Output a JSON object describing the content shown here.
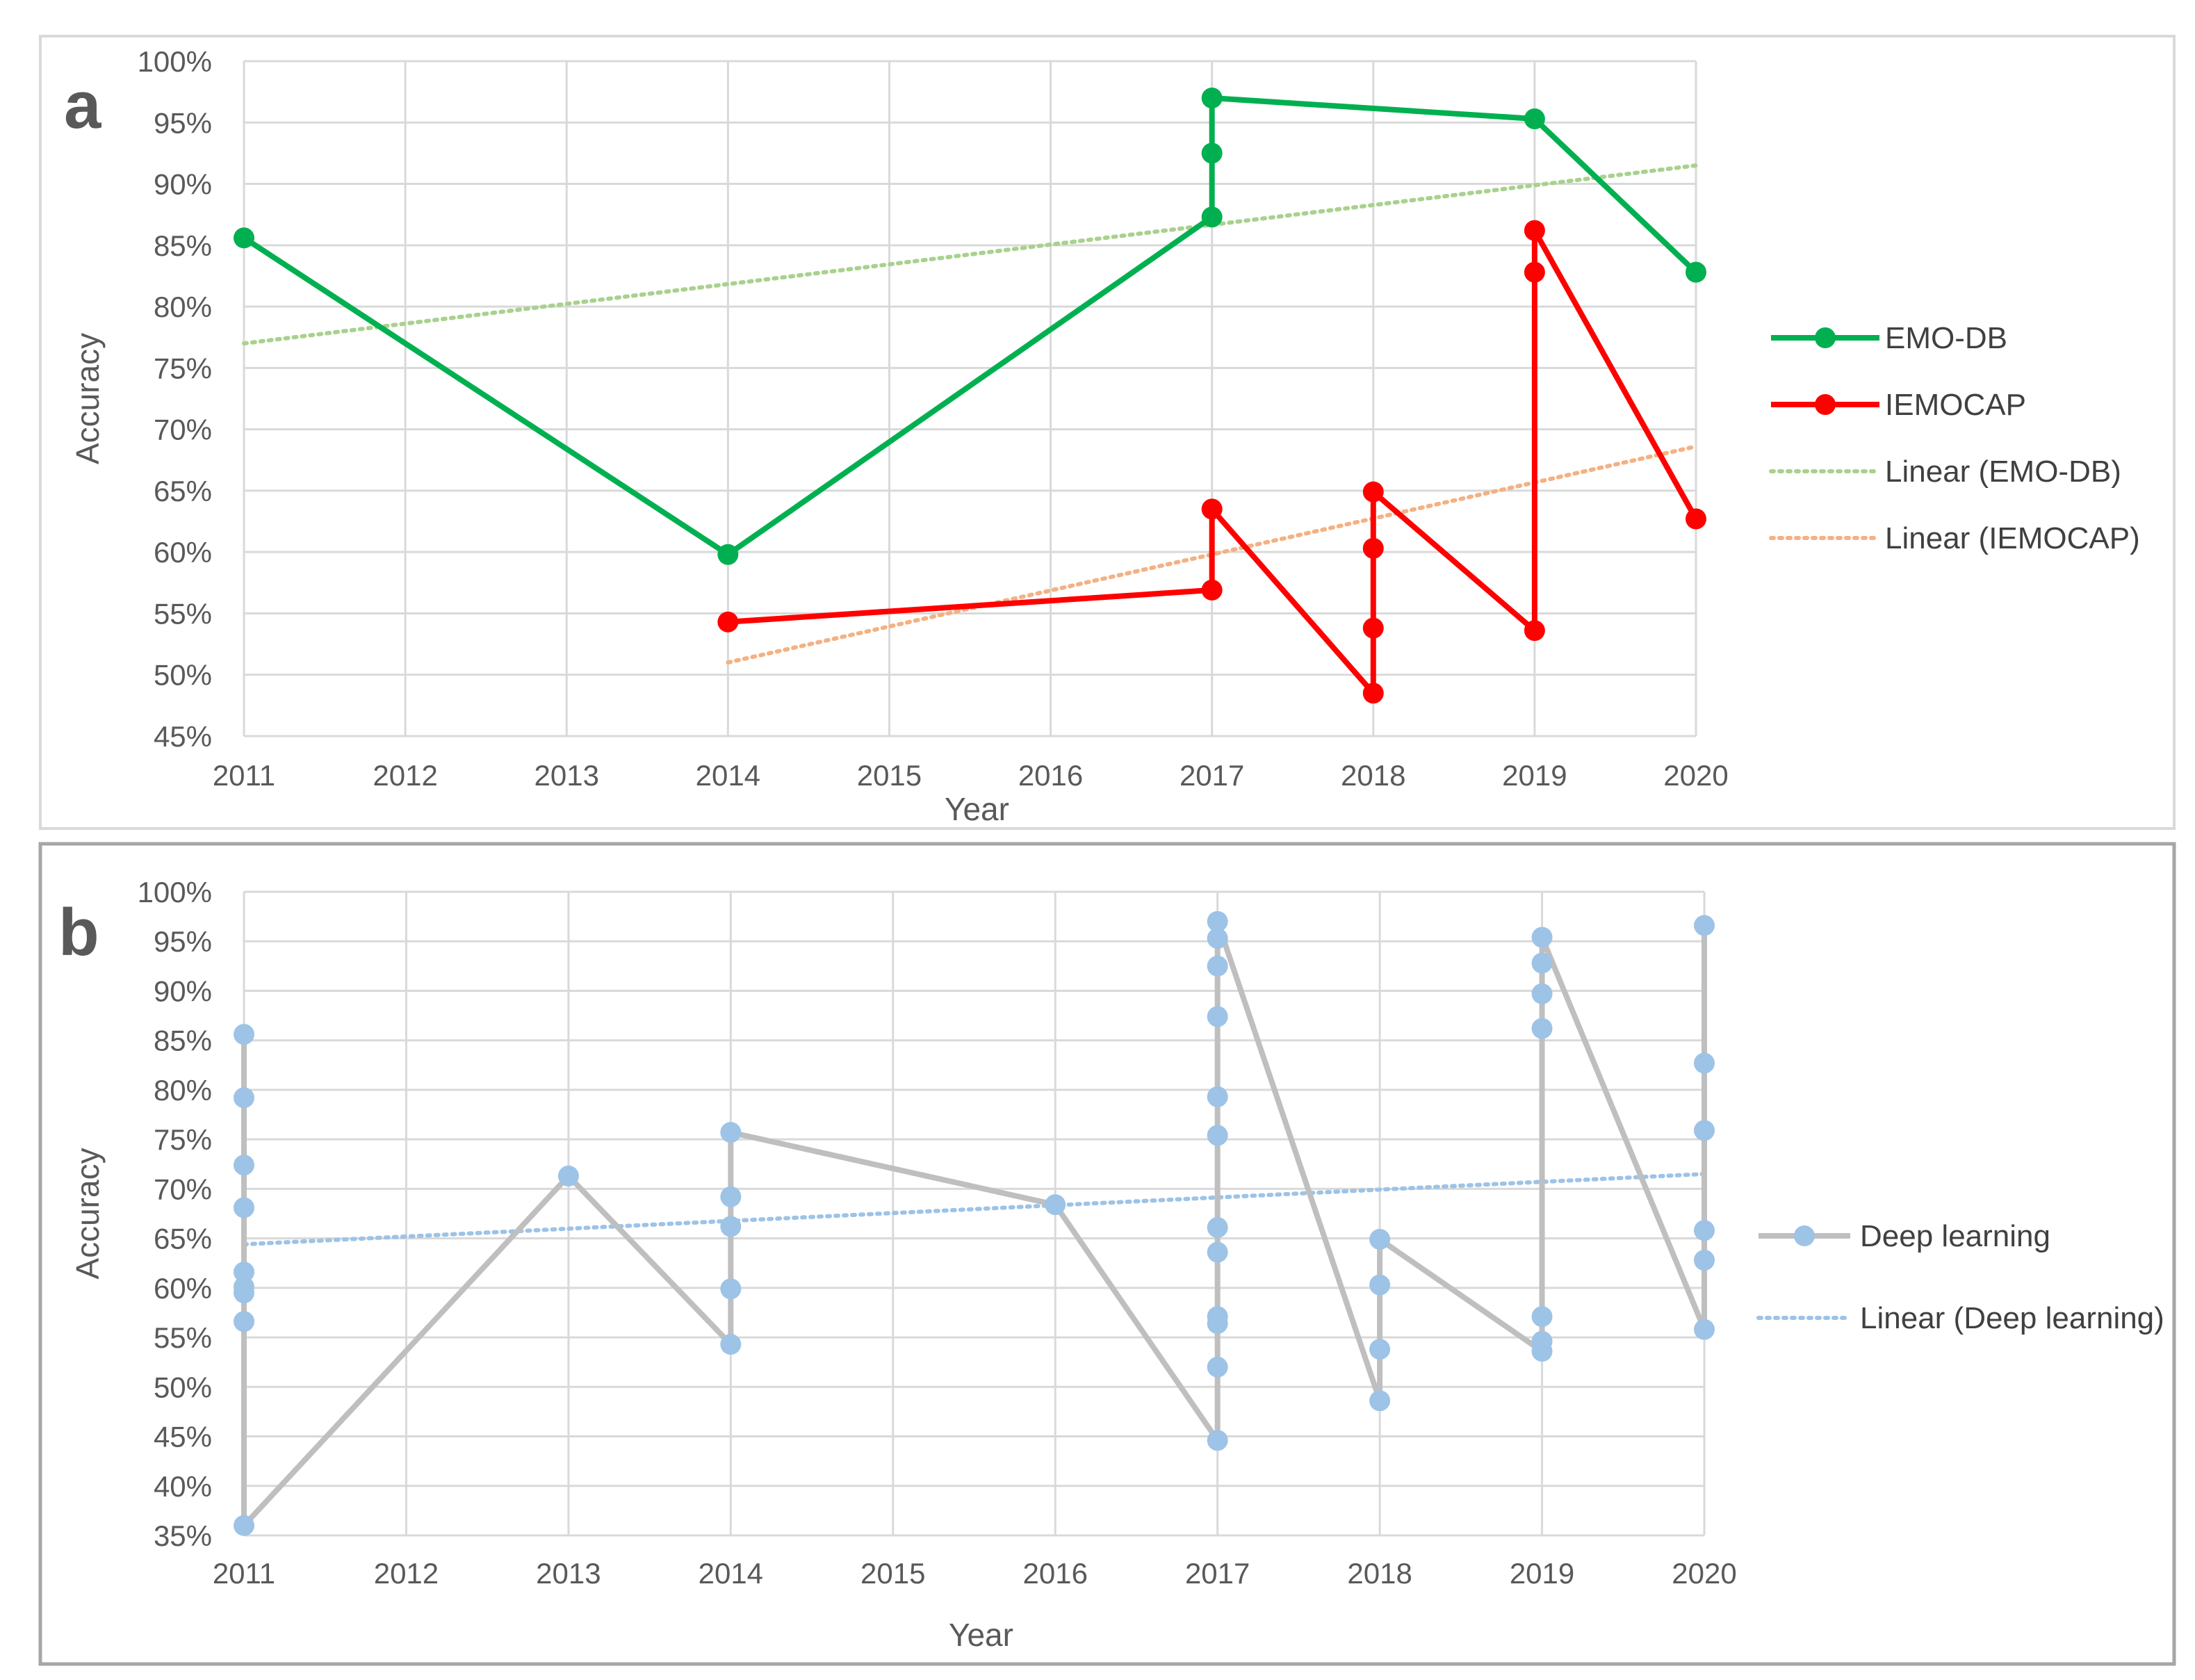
{
  "chart_data": [
    {
      "type": "line",
      "panel_label": "a",
      "xlabel": "Year",
      "ylabel": "Accuracy",
      "x_ticks": [
        "2011",
        "2012",
        "2013",
        "2014",
        "2015",
        "2016",
        "2017",
        "2018",
        "2019",
        "2020"
      ],
      "y_ticks": [
        "45%",
        "50%",
        "55%",
        "60%",
        "65%",
        "70%",
        "75%",
        "80%",
        "85%",
        "90%",
        "95%",
        "100%"
      ],
      "ylim": [
        45,
        100
      ],
      "xlim": [
        2011,
        2020
      ],
      "grid": true,
      "legend_position": "right",
      "series": [
        {
          "name": "EMO-DB",
          "color": "#00B050",
          "marker": "circle",
          "points": [
            [
              2011,
              85.6
            ],
            [
              2014,
              59.8
            ],
            [
              2017,
              87.3
            ],
            [
              2017,
              92.5
            ],
            [
              2017,
              97.0
            ],
            [
              2019,
              95.3
            ],
            [
              2020,
              82.8
            ]
          ]
        },
        {
          "name": "IEMOCAP",
          "color": "#FF0000",
          "marker": "circle",
          "points": [
            [
              2014,
              54.3
            ],
            [
              2017,
              56.9
            ],
            [
              2017,
              63.5
            ],
            [
              2018,
              48.5
            ],
            [
              2018,
              53.8
            ],
            [
              2018,
              60.3
            ],
            [
              2018,
              64.9
            ],
            [
              2019,
              53.6
            ],
            [
              2019,
              82.8
            ],
            [
              2019,
              86.2
            ],
            [
              2020,
              62.7
            ]
          ]
        },
        {
          "name": "Linear (EMO-DB)",
          "color": "#A9D18E",
          "style": "dotted",
          "trendline": true,
          "points": [
            [
              2011,
              77.0
            ],
            [
              2020,
              91.5
            ]
          ]
        },
        {
          "name": "Linear (IEMOCAP)",
          "color": "#F4B183",
          "style": "dotted",
          "trendline": true,
          "points": [
            [
              2014,
              51.0
            ],
            [
              2020,
              68.6
            ]
          ]
        }
      ]
    },
    {
      "type": "line",
      "panel_label": "b",
      "xlabel": "Year",
      "ylabel": "Accuracy",
      "x_ticks": [
        "2011",
        "2012",
        "2013",
        "2014",
        "2015",
        "2016",
        "2017",
        "2018",
        "2019",
        "2020"
      ],
      "y_ticks": [
        "35%",
        "40%",
        "45%",
        "50%",
        "55%",
        "60%",
        "65%",
        "70%",
        "75%",
        "80%",
        "85%",
        "90%",
        "95%",
        "100%"
      ],
      "ylim": [
        35,
        100
      ],
      "xlim": [
        2011,
        2020
      ],
      "grid": true,
      "legend_position": "right",
      "series": [
        {
          "name": "Deep learning",
          "color": "#BFBFBF",
          "marker_color": "#9DC3E6",
          "marker": "circle",
          "points": [
            [
              2011,
              85.6
            ],
            [
              2011,
              79.2
            ],
            [
              2011,
              72.4
            ],
            [
              2011,
              68.1
            ],
            [
              2011,
              61.6
            ],
            [
              2011,
              60.1
            ],
            [
              2011,
              59.5
            ],
            [
              2011,
              56.6
            ],
            [
              2011,
              36.0
            ],
            [
              2013,
              71.3
            ],
            [
              2014,
              54.3
            ],
            [
              2014,
              59.9
            ],
            [
              2014,
              66.2
            ],
            [
              2014,
              69.2
            ],
            [
              2014,
              75.7
            ],
            [
              2016,
              68.4
            ],
            [
              2017,
              44.6
            ],
            [
              2017,
              52.0
            ],
            [
              2017,
              56.4
            ],
            [
              2017,
              57.1
            ],
            [
              2017,
              63.6
            ],
            [
              2017,
              66.1
            ],
            [
              2017,
              75.4
            ],
            [
              2017,
              79.3
            ],
            [
              2017,
              87.4
            ],
            [
              2017,
              92.5
            ],
            [
              2017,
              95.3
            ],
            [
              2017,
              97.0
            ],
            [
              2018,
              48.6
            ],
            [
              2018,
              53.8
            ],
            [
              2018,
              60.3
            ],
            [
              2018,
              64.9
            ],
            [
              2019,
              53.6
            ],
            [
              2019,
              54.6
            ],
            [
              2019,
              57.1
            ],
            [
              2019,
              86.2
            ],
            [
              2019,
              89.7
            ],
            [
              2019,
              92.8
            ],
            [
              2019,
              95.4
            ],
            [
              2020,
              55.8
            ],
            [
              2020,
              62.8
            ],
            [
              2020,
              65.8
            ],
            [
              2020,
              75.9
            ],
            [
              2020,
              82.7
            ],
            [
              2020,
              96.6
            ]
          ]
        },
        {
          "name": "Linear (Deep learning)",
          "color": "#9DC3E6",
          "style": "dotted",
          "trendline": true,
          "points": [
            [
              2011,
              64.4
            ],
            [
              2020,
              71.5
            ]
          ]
        }
      ]
    }
  ]
}
